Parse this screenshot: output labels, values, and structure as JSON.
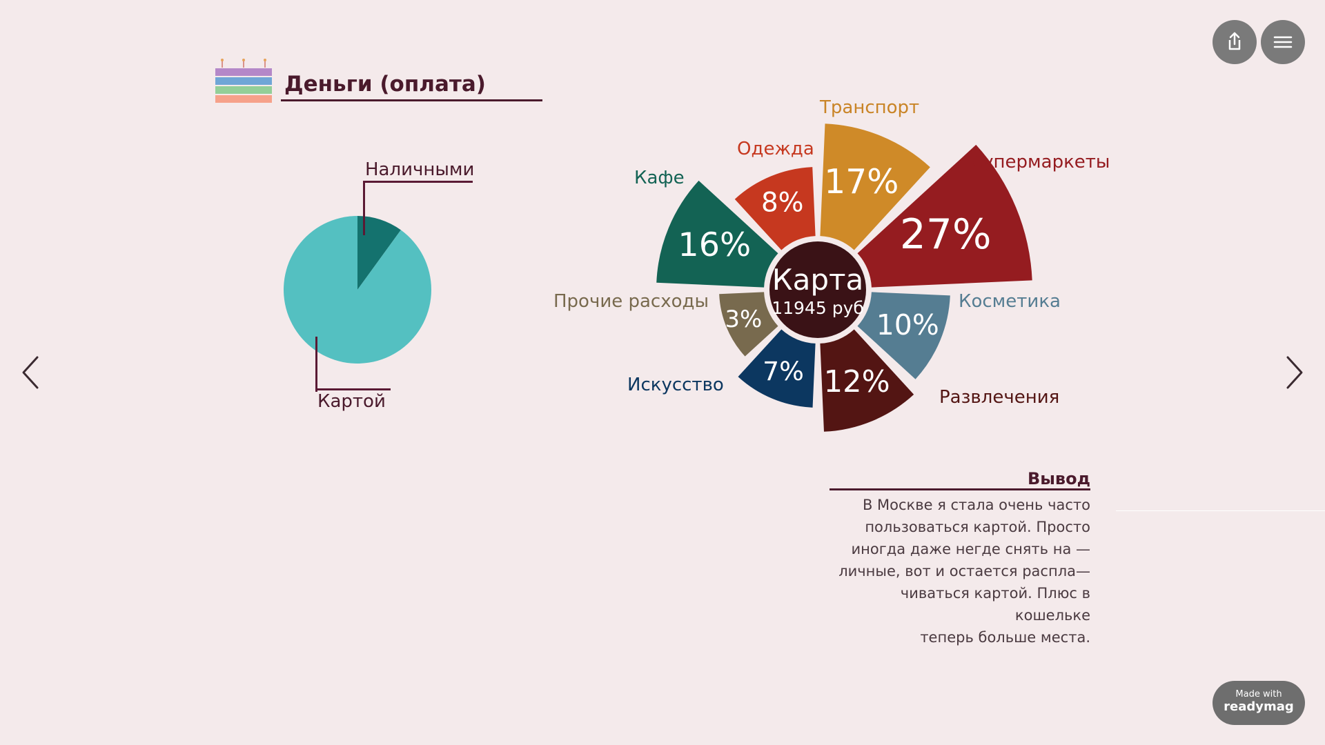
{
  "header": {
    "title": "Деньги (оплата)"
  },
  "controls": {
    "share_icon": "share-icon",
    "menu_icon": "hamburger-menu-icon",
    "prev_icon": "chevron-left-icon",
    "next_icon": "chevron-right-icon"
  },
  "badge": {
    "line1": "Made with",
    "line2": "readymag"
  },
  "pie_labels": {
    "cash": "Наличными",
    "card": "Картой"
  },
  "center": {
    "title": "Карта",
    "amount": "11945 руб"
  },
  "conclusion": {
    "title": "Вывод",
    "lines": [
      "В Москве я стала очень часто",
      "пользоваться картой. Просто",
      "иногда даже негде снять на —",
      "личные, вот и остается распла—",
      "чиваться картой. Плюс в кошельке",
      "теперь больше места."
    ]
  },
  "chart_data": [
    {
      "type": "pie",
      "title": "",
      "categories": [
        "Наличными",
        "Картой"
      ],
      "values": [
        10,
        90
      ],
      "colors": [
        "#14726e",
        "#54c0c1"
      ]
    },
    {
      "type": "pie",
      "title": "Карта",
      "subtitle": "11945 руб",
      "categories": [
        "Транспорт",
        "Супермаркеты",
        "Косметика",
        "Развлечения",
        "Искусство",
        "Прочие расходы",
        "Кафе",
        "Одежда"
      ],
      "values": [
        17,
        27,
        10,
        12,
        7,
        3,
        16,
        8
      ],
      "labels": [
        "17%",
        "27%",
        "10%",
        "12%",
        "7%",
        "3%",
        "16%",
        "8%"
      ],
      "colors": [
        "#cf8a28",
        "#951c20",
        "#557d92",
        "#531513",
        "#0c3760",
        "#786a4e",
        "#136354",
        "#c6381f"
      ]
    }
  ]
}
